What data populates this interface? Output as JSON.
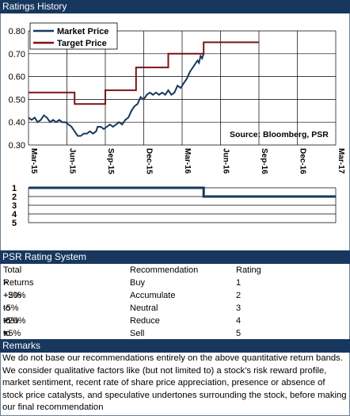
{
  "header": {
    "ratings_history": "Ratings History",
    "psr_rating_system": "PSR Rating System",
    "remarks": "Remarks"
  },
  "chart_data": {
    "type": "line",
    "legend": [
      "Market Price",
      "Target Price"
    ],
    "legend_placement": "top-left",
    "annotation": "Source: Bloomberg, PSR",
    "colors": {
      "market": "#17375e",
      "target": "#7b1416"
    },
    "ylim": [
      0.3,
      0.8
    ],
    "yticks": [
      "0.30",
      "0.40",
      "0.50",
      "0.60",
      "0.70",
      "0.80"
    ],
    "yvals": [
      0.3,
      0.4,
      0.5,
      0.6,
      0.7,
      0.8
    ],
    "xticks": [
      "Mar-15",
      "Jun-15",
      "Sep-15",
      "Dec-15",
      "Mar-16",
      "Jun-16",
      "Sep-16",
      "Dec-16",
      "Mar-17"
    ],
    "grid": true,
    "market_price": [
      [
        0.0,
        0.42
      ],
      [
        0.02,
        0.41
      ],
      [
        0.04,
        0.42
      ],
      [
        0.06,
        0.4
      ],
      [
        0.08,
        0.41
      ],
      [
        0.1,
        0.43
      ],
      [
        0.12,
        0.42
      ],
      [
        0.14,
        0.4
      ],
      [
        0.16,
        0.41
      ],
      [
        0.18,
        0.4
      ],
      [
        0.2,
        0.41
      ],
      [
        0.22,
        0.4
      ],
      [
        0.24,
        0.4
      ],
      [
        0.26,
        0.39
      ],
      [
        0.28,
        0.38
      ],
      [
        0.3,
        0.36
      ],
      [
        0.32,
        0.34
      ],
      [
        0.34,
        0.34
      ],
      [
        0.36,
        0.35
      ],
      [
        0.38,
        0.35
      ],
      [
        0.4,
        0.36
      ],
      [
        0.42,
        0.35
      ],
      [
        0.44,
        0.36
      ],
      [
        0.45,
        0.38
      ],
      [
        0.47,
        0.38
      ],
      [
        0.49,
        0.37
      ],
      [
        0.51,
        0.38
      ],
      [
        0.53,
        0.39
      ],
      [
        0.55,
        0.38
      ],
      [
        0.57,
        0.39
      ],
      [
        0.59,
        0.4
      ],
      [
        0.61,
        0.39
      ],
      [
        0.63,
        0.41
      ],
      [
        0.65,
        0.42
      ],
      [
        0.67,
        0.45
      ],
      [
        0.69,
        0.47
      ],
      [
        0.71,
        0.48
      ],
      [
        0.73,
        0.51
      ],
      [
        0.75,
        0.5
      ],
      [
        0.77,
        0.52
      ],
      [
        0.79,
        0.53
      ],
      [
        0.81,
        0.52
      ],
      [
        0.83,
        0.53
      ],
      [
        0.85,
        0.52
      ],
      [
        0.87,
        0.53
      ],
      [
        0.89,
        0.52
      ],
      [
        0.91,
        0.54
      ],
      [
        0.93,
        0.52
      ],
      [
        0.95,
        0.53
      ],
      [
        0.97,
        0.56
      ],
      [
        0.99,
        0.55
      ],
      [
        1.01,
        0.57
      ],
      [
        1.03,
        0.59
      ],
      [
        1.05,
        0.62
      ],
      [
        1.06,
        0.63
      ],
      [
        1.08,
        0.65
      ],
      [
        1.1,
        0.67
      ],
      [
        1.11,
        0.66
      ],
      [
        1.12,
        0.69
      ],
      [
        1.13,
        0.68
      ],
      [
        1.14,
        0.7
      ]
    ],
    "target_price": [
      [
        0.0,
        0.53
      ],
      [
        0.3,
        0.53
      ],
      [
        0.3,
        0.48
      ],
      [
        0.5,
        0.48
      ],
      [
        0.5,
        0.54
      ],
      [
        0.7,
        0.54
      ],
      [
        0.7,
        0.64
      ],
      [
        0.91,
        0.64
      ],
      [
        0.91,
        0.7
      ],
      [
        1.14,
        0.7
      ],
      [
        1.14,
        0.75
      ],
      [
        1.5,
        0.75
      ]
    ],
    "x_positions": {
      "Mar-15": 0.0,
      "Jun-15": 0.25,
      "Sep-15": 0.5,
      "Dec-15": 0.75,
      "Mar-16": 1.0,
      "Jun-16": 1.25,
      "Sep-16": 1.5,
      "Dec-16": 1.75,
      "Mar-17": 2.0
    },
    "x_unit_note": "years from Mar-15",
    "rating_yticks": [
      "1",
      "2",
      "3",
      "4",
      "5"
    ],
    "rating_steps": [
      [
        0.0,
        1
      ],
      [
        1.14,
        1
      ],
      [
        1.14,
        2
      ],
      [
        2.0,
        2
      ]
    ]
  },
  "rating_table": {
    "headers": [
      "Total Returns",
      "Recommendation",
      "Rating"
    ],
    "rows": [
      [
        "> +20%",
        "Buy",
        "1"
      ],
      [
        "+5% to +20%",
        "Accumulate",
        "2"
      ],
      [
        "-5% to +5%",
        "Neutral",
        "3"
      ],
      [
        "-5% to -20%",
        "Reduce",
        "4"
      ],
      [
        "< -20%",
        "Sell",
        "5"
      ]
    ]
  },
  "remarks_text": "We do not base our recommendations entirely on the  above quantitative return bands.  We consider qualitative factors like (but not limited to) a stock's risk reward profile, market sentiment, recent rate of share price appreciation, presence or absence of stock price catalysts, and speculative undertones surrounding the stock, before making our final recommendation"
}
